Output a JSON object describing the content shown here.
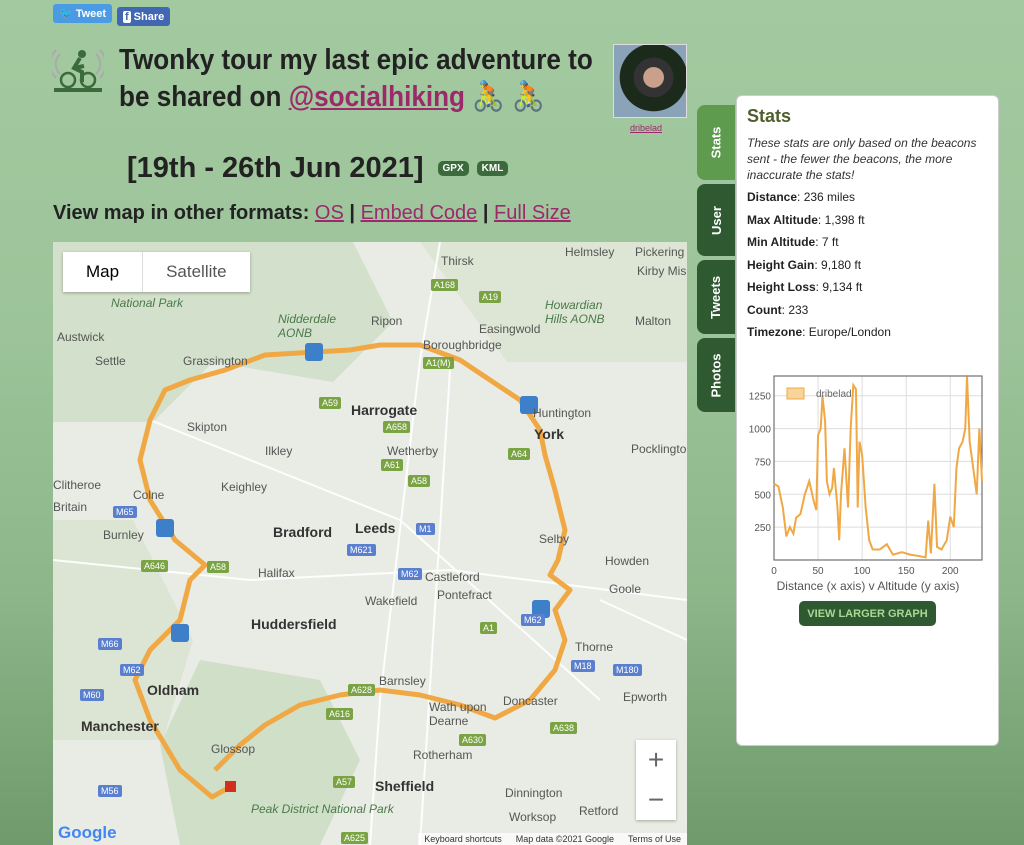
{
  "share": {
    "tweet": "Tweet",
    "facebook": "Share"
  },
  "header": {
    "title_pre": "Twonky tour my last epic adventure to be shared on ",
    "title_link": "@socialhiking",
    "title_emoji": " 🚴 🚴",
    "dates": "[19th - 26th Jun 2021]",
    "gpx": "GPX",
    "kml": "KML",
    "username": "dribelad"
  },
  "formats": {
    "label": "View map in other formats:",
    "links": [
      "OS",
      "Embed Code",
      "Full Size"
    ],
    "sep": "|"
  },
  "map": {
    "type_buttons": [
      "Map",
      "Satellite"
    ],
    "zoom_in": "+",
    "zoom_out": "−",
    "google": "Google",
    "attribution": [
      "Keyboard shortcuts",
      "Map data ©2021 Google",
      "Terms of Use"
    ],
    "route_color": "#f0a844",
    "labels": [
      "National Park",
      "Thirsk",
      "Helmsley",
      "Pickering",
      "Kirby Misperton",
      "Austwick",
      "Nidderdale AONB",
      "Ripon",
      "Boroughbridge",
      "Easingwold",
      "Howardian Hills AONB",
      "Malton",
      "Settle",
      "Grassington",
      "Harrogate",
      "York",
      "Huntington",
      "Skipton",
      "Ilkley",
      "Wetherby",
      "Pocklington",
      "Keighley",
      "Colne",
      "Clitheroe",
      "Britain",
      "Burnley",
      "Bradford",
      "Leeds",
      "Selby",
      "Howden",
      "Halifax",
      "Castleford",
      "Goole",
      "Wakefield",
      "Pontefract",
      "Huddersfield",
      "Thorne",
      "Oldham",
      "Barnsley",
      "Doncaster",
      "Epworth",
      "Manchester",
      "Wath upon Dearne",
      "Glossop",
      "Rotherham",
      "Sheffield",
      "Peak District National Park",
      "Dinnington",
      "Retford",
      "Worksop",
      "A168",
      "A19",
      "A1(M)",
      "A59",
      "A658",
      "A61",
      "A58",
      "A64",
      "M65",
      "M1",
      "M621",
      "A646",
      "A58",
      "M62",
      "A1",
      "M62",
      "M66",
      "M62",
      "M18",
      "M180",
      "M60",
      "A628",
      "A616",
      "A630",
      "A638",
      "A57",
      "M56",
      "A625"
    ]
  },
  "tabs": [
    "Stats",
    "User",
    "Tweets",
    "Photos"
  ],
  "stats": {
    "title": "Stats",
    "note": "These stats are only based on the beacons sent - the fewer the beacons, the more inaccurate the stats!",
    "rows": [
      {
        "label": "Distance",
        "value": "236 miles"
      },
      {
        "label": "Max Altitude",
        "value": "1,398 ft"
      },
      {
        "label": "Min Altitude",
        "value": "7 ft"
      },
      {
        "label": "Height Gain",
        "value": "9,180 ft"
      },
      {
        "label": "Height Loss",
        "value": "9,134 ft"
      },
      {
        "label": "Count",
        "value": "233"
      },
      {
        "label": "Timezone",
        "value": "Europe/London"
      }
    ],
    "button": "VIEW LARGER GRAPH"
  },
  "chart_data": {
    "type": "line",
    "xlabel": "Distance (x axis) v Altitude (y axis)",
    "ylabel": "",
    "xlim": [
      0,
      236
    ],
    "ylim": [
      0,
      1400
    ],
    "xticks": [
      0,
      50,
      100,
      150,
      200
    ],
    "yticks": [
      250,
      500,
      750,
      1000,
      1250
    ],
    "grid": true,
    "legend": "top-left",
    "color": "#f0a844",
    "series": [
      {
        "name": "dribelad",
        "x": [
          0,
          5,
          10,
          14,
          18,
          22,
          25,
          30,
          35,
          40,
          45,
          48,
          50,
          53,
          55,
          58,
          60,
          63,
          66,
          68,
          72,
          74,
          76,
          80,
          84,
          87,
          90,
          93,
          95,
          97,
          100,
          104,
          108,
          112,
          120,
          128,
          135,
          145,
          155,
          165,
          172,
          175,
          178,
          182,
          185,
          190,
          196,
          200,
          204,
          207,
          210,
          214,
          217,
          219,
          222,
          226,
          230,
          233,
          236
        ],
        "y": [
          580,
          560,
          400,
          180,
          250,
          200,
          320,
          350,
          500,
          600,
          450,
          380,
          950,
          1000,
          1250,
          1050,
          600,
          500,
          550,
          700,
          400,
          150,
          500,
          850,
          400,
          1000,
          1330,
          1300,
          400,
          900,
          800,
          400,
          150,
          80,
          80,
          120,
          40,
          60,
          40,
          30,
          20,
          300,
          50,
          580,
          100,
          80,
          150,
          330,
          250,
          700,
          850,
          900,
          1000,
          1398,
          900,
          700,
          500,
          1000,
          600
        ]
      }
    ]
  }
}
